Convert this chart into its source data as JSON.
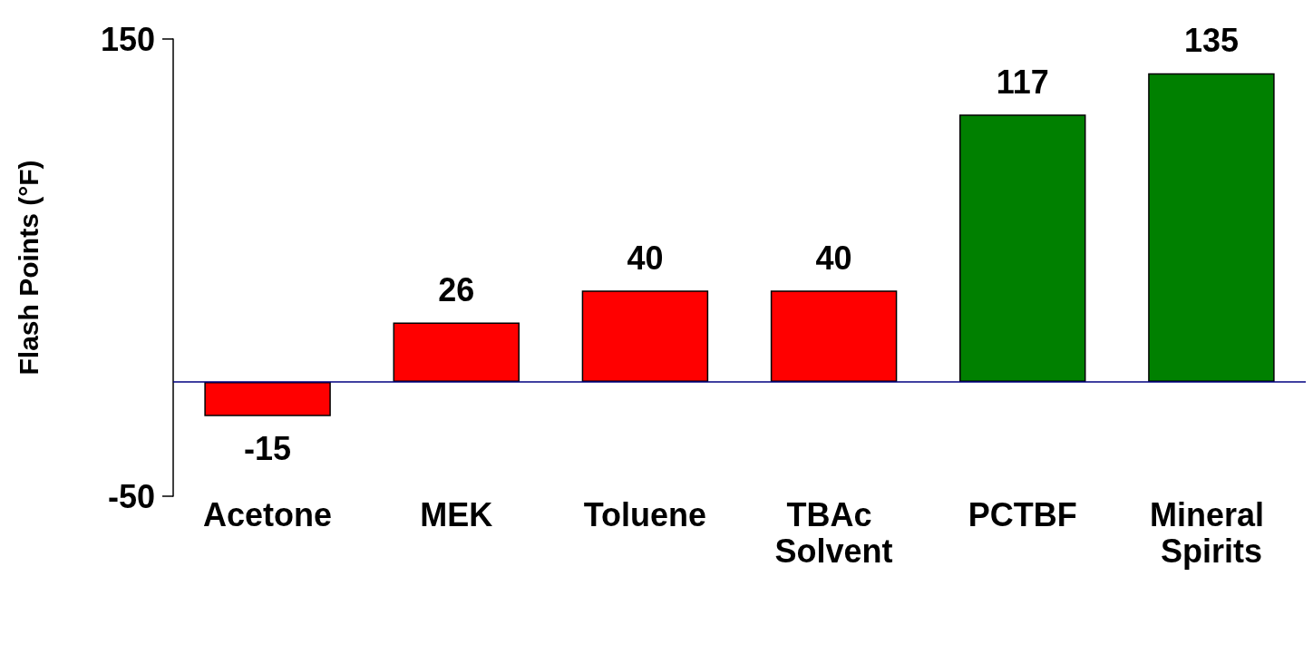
{
  "chart_data": {
    "type": "bar",
    "ylabel": "Flash Points (°F)",
    "categories": [
      "Acetone",
      "MEK",
      "Toluene",
      "TBAc Solvent",
      "PCTBF",
      "Mineral Spirits"
    ],
    "values": [
      -15,
      26,
      40,
      40,
      117,
      135
    ],
    "colors": [
      "#ff0000",
      "#ff0000",
      "#ff0000",
      "#ff0000",
      "#008000",
      "#008000"
    ],
    "ylim": [
      -50,
      150
    ],
    "yticks": [
      -50,
      150
    ],
    "grid": false,
    "data_labels": true,
    "ref_lines": [
      {
        "axis": "y",
        "value": 0,
        "color": "#000080"
      }
    ]
  }
}
